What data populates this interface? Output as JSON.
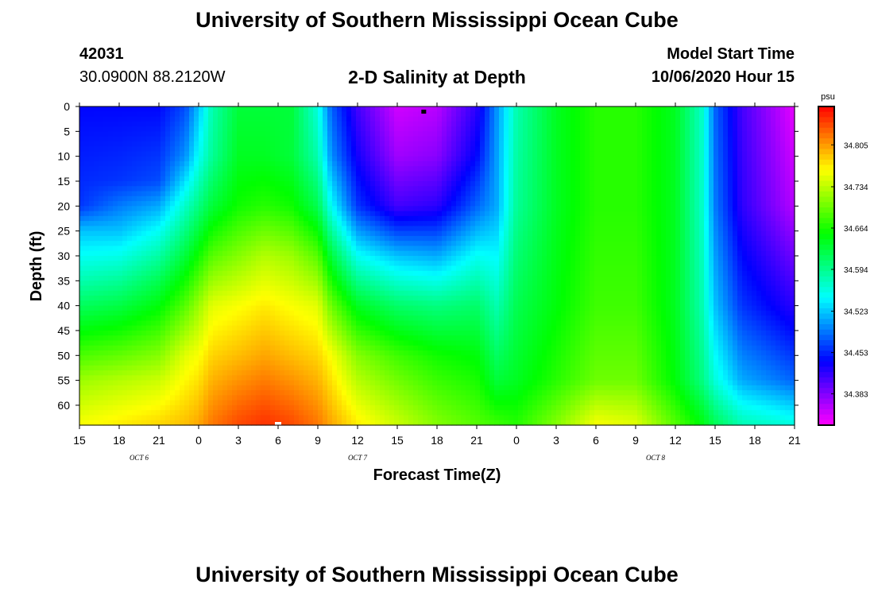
{
  "header": {
    "title": "University of Southern Mississippi Ocean Cube",
    "station_id": "42031",
    "station_location": "30.0900N 88.2120W",
    "plot_title": "2-D Salinity at Depth",
    "model_start_label": "Model Start Time",
    "model_start_value": "10/06/2020 Hour 15"
  },
  "footer": {
    "title": "University of Southern Mississippi Ocean Cube"
  },
  "chart_data": {
    "type": "heatmap",
    "title": "2-D Salinity at Depth",
    "xlabel": "Forecast Time(Z)",
    "ylabel": "Depth (ft)",
    "x_range_hours": [
      0,
      54
    ],
    "x_ticks": [
      "15",
      "18",
      "21",
      "0",
      "3",
      "6",
      "9",
      "12",
      "15",
      "18",
      "21",
      "0",
      "3",
      "6",
      "9",
      "12",
      "15",
      "18",
      "21"
    ],
    "date_labels": [
      {
        "label": "OCT 6",
        "after_tick": 1.5
      },
      {
        "label": "OCT 7",
        "after_tick": 7
      },
      {
        "label": "OCT 8",
        "after_tick": 14.5
      }
    ],
    "y_range_ft": [
      0,
      64
    ],
    "y_ticks": [
      0,
      5,
      10,
      15,
      20,
      25,
      30,
      35,
      40,
      45,
      50,
      55,
      60
    ],
    "colorbar": {
      "unit": "psu",
      "min": 34.33,
      "max": 34.87,
      "ticks": [
        "34.805",
        "34.734",
        "34.664",
        "34.594",
        "34.523",
        "34.453",
        "34.383"
      ]
    },
    "surface_marker_hour": 26,
    "bottom_marker_hour": 15,
    "series": [
      {
        "hour": 0,
        "depths": [
          0,
          20,
          25,
          35,
          45,
          55,
          64
        ],
        "values": [
          34.44,
          34.46,
          34.52,
          34.58,
          34.65,
          34.72,
          34.76
        ]
      },
      {
        "hour": 3,
        "depths": [
          0,
          15,
          25,
          35,
          45,
          55,
          64
        ],
        "values": [
          34.44,
          34.46,
          34.52,
          34.59,
          34.66,
          34.73,
          34.77
        ]
      },
      {
        "hour": 6,
        "depths": [
          0,
          15,
          25,
          35,
          45,
          55,
          64
        ],
        "values": [
          34.44,
          34.47,
          34.55,
          34.62,
          34.68,
          34.74,
          34.78
        ]
      },
      {
        "hour": 8,
        "depths": [
          0,
          10,
          20,
          30,
          40,
          50,
          64
        ],
        "values": [
          34.47,
          34.5,
          34.57,
          34.63,
          34.69,
          34.75,
          34.79
        ]
      },
      {
        "hour": 9,
        "depths": [
          0,
          10,
          20,
          30,
          40,
          50,
          64
        ],
        "values": [
          34.52,
          34.55,
          34.6,
          34.66,
          34.72,
          34.76,
          34.8
        ]
      },
      {
        "hour": 10,
        "depths": [
          0,
          10,
          20,
          30,
          40,
          50,
          64
        ],
        "values": [
          34.58,
          34.59,
          34.63,
          34.69,
          34.75,
          34.78,
          34.82
        ]
      },
      {
        "hour": 12,
        "depths": [
          0,
          10,
          20,
          30,
          40,
          50,
          64
        ],
        "values": [
          34.63,
          34.64,
          34.66,
          34.71,
          34.76,
          34.79,
          34.84
        ]
      },
      {
        "hour": 14,
        "depths": [
          0,
          10,
          20,
          30,
          40,
          50,
          64
        ],
        "values": [
          34.63,
          34.64,
          34.67,
          34.73,
          34.77,
          34.8,
          34.85
        ]
      },
      {
        "hour": 16,
        "depths": [
          0,
          10,
          20,
          30,
          40,
          50,
          64
        ],
        "values": [
          34.63,
          34.63,
          34.66,
          34.72,
          34.76,
          34.79,
          34.84
        ]
      },
      {
        "hour": 18,
        "depths": [
          0,
          10,
          20,
          30,
          40,
          50,
          64
        ],
        "values": [
          34.56,
          34.58,
          34.62,
          34.69,
          34.75,
          34.78,
          34.82
        ]
      },
      {
        "hour": 19,
        "depths": [
          0,
          10,
          20,
          30,
          40,
          50,
          64
        ],
        "values": [
          34.48,
          34.5,
          34.55,
          34.63,
          34.7,
          34.76,
          34.8
        ]
      },
      {
        "hour": 21,
        "depths": [
          0,
          10,
          20,
          30,
          40,
          50,
          64
        ],
        "values": [
          34.41,
          34.43,
          34.46,
          34.55,
          34.64,
          34.71,
          34.77
        ]
      },
      {
        "hour": 24,
        "depths": [
          0,
          10,
          20,
          30,
          40,
          50,
          64
        ],
        "values": [
          34.35,
          34.37,
          34.41,
          34.52,
          34.61,
          34.68,
          34.74
        ]
      },
      {
        "hour": 27,
        "depths": [
          0,
          10,
          20,
          30,
          40,
          50,
          64
        ],
        "values": [
          34.36,
          34.38,
          34.42,
          34.51,
          34.6,
          34.66,
          34.71
        ]
      },
      {
        "hour": 30,
        "depths": [
          0,
          10,
          20,
          30,
          40,
          50,
          64
        ],
        "values": [
          34.42,
          34.44,
          34.48,
          34.55,
          34.61,
          34.65,
          34.69
        ]
      },
      {
        "hour": 31.5,
        "depths": [
          0,
          20,
          40,
          55,
          64
        ],
        "values": [
          34.5,
          34.51,
          34.58,
          34.63,
          34.68
        ]
      },
      {
        "hour": 33,
        "depths": [
          0,
          20,
          40,
          55,
          64
        ],
        "values": [
          34.58,
          34.59,
          34.62,
          34.64,
          34.67
        ]
      },
      {
        "hour": 36,
        "depths": [
          0,
          20,
          40,
          55,
          64
        ],
        "values": [
          34.64,
          34.64,
          34.65,
          34.67,
          34.71
        ]
      },
      {
        "hour": 39,
        "depths": [
          0,
          20,
          40,
          55,
          64
        ],
        "values": [
          34.67,
          34.67,
          34.68,
          34.7,
          34.76
        ]
      },
      {
        "hour": 42,
        "depths": [
          0,
          20,
          40,
          55,
          64
        ],
        "values": [
          34.67,
          34.67,
          34.68,
          34.7,
          34.75
        ]
      },
      {
        "hour": 45,
        "depths": [
          0,
          20,
          40,
          55,
          64
        ],
        "values": [
          34.64,
          34.64,
          34.64,
          34.65,
          34.69
        ]
      },
      {
        "hour": 47,
        "depths": [
          0,
          20,
          40,
          55,
          64
        ],
        "values": [
          34.57,
          34.57,
          34.58,
          34.6,
          34.65
        ]
      },
      {
        "hour": 48,
        "depths": [
          0,
          20,
          40,
          55,
          64
        ],
        "values": [
          34.48,
          34.49,
          34.52,
          34.56,
          34.62
        ]
      },
      {
        "hour": 50,
        "depths": [
          0,
          20,
          40,
          55,
          64
        ],
        "values": [
          34.41,
          34.42,
          34.46,
          34.51,
          34.58
        ]
      },
      {
        "hour": 54,
        "depths": [
          0,
          20,
          40,
          55,
          64
        ],
        "values": [
          34.34,
          34.36,
          34.42,
          34.48,
          34.56
        ]
      }
    ]
  }
}
